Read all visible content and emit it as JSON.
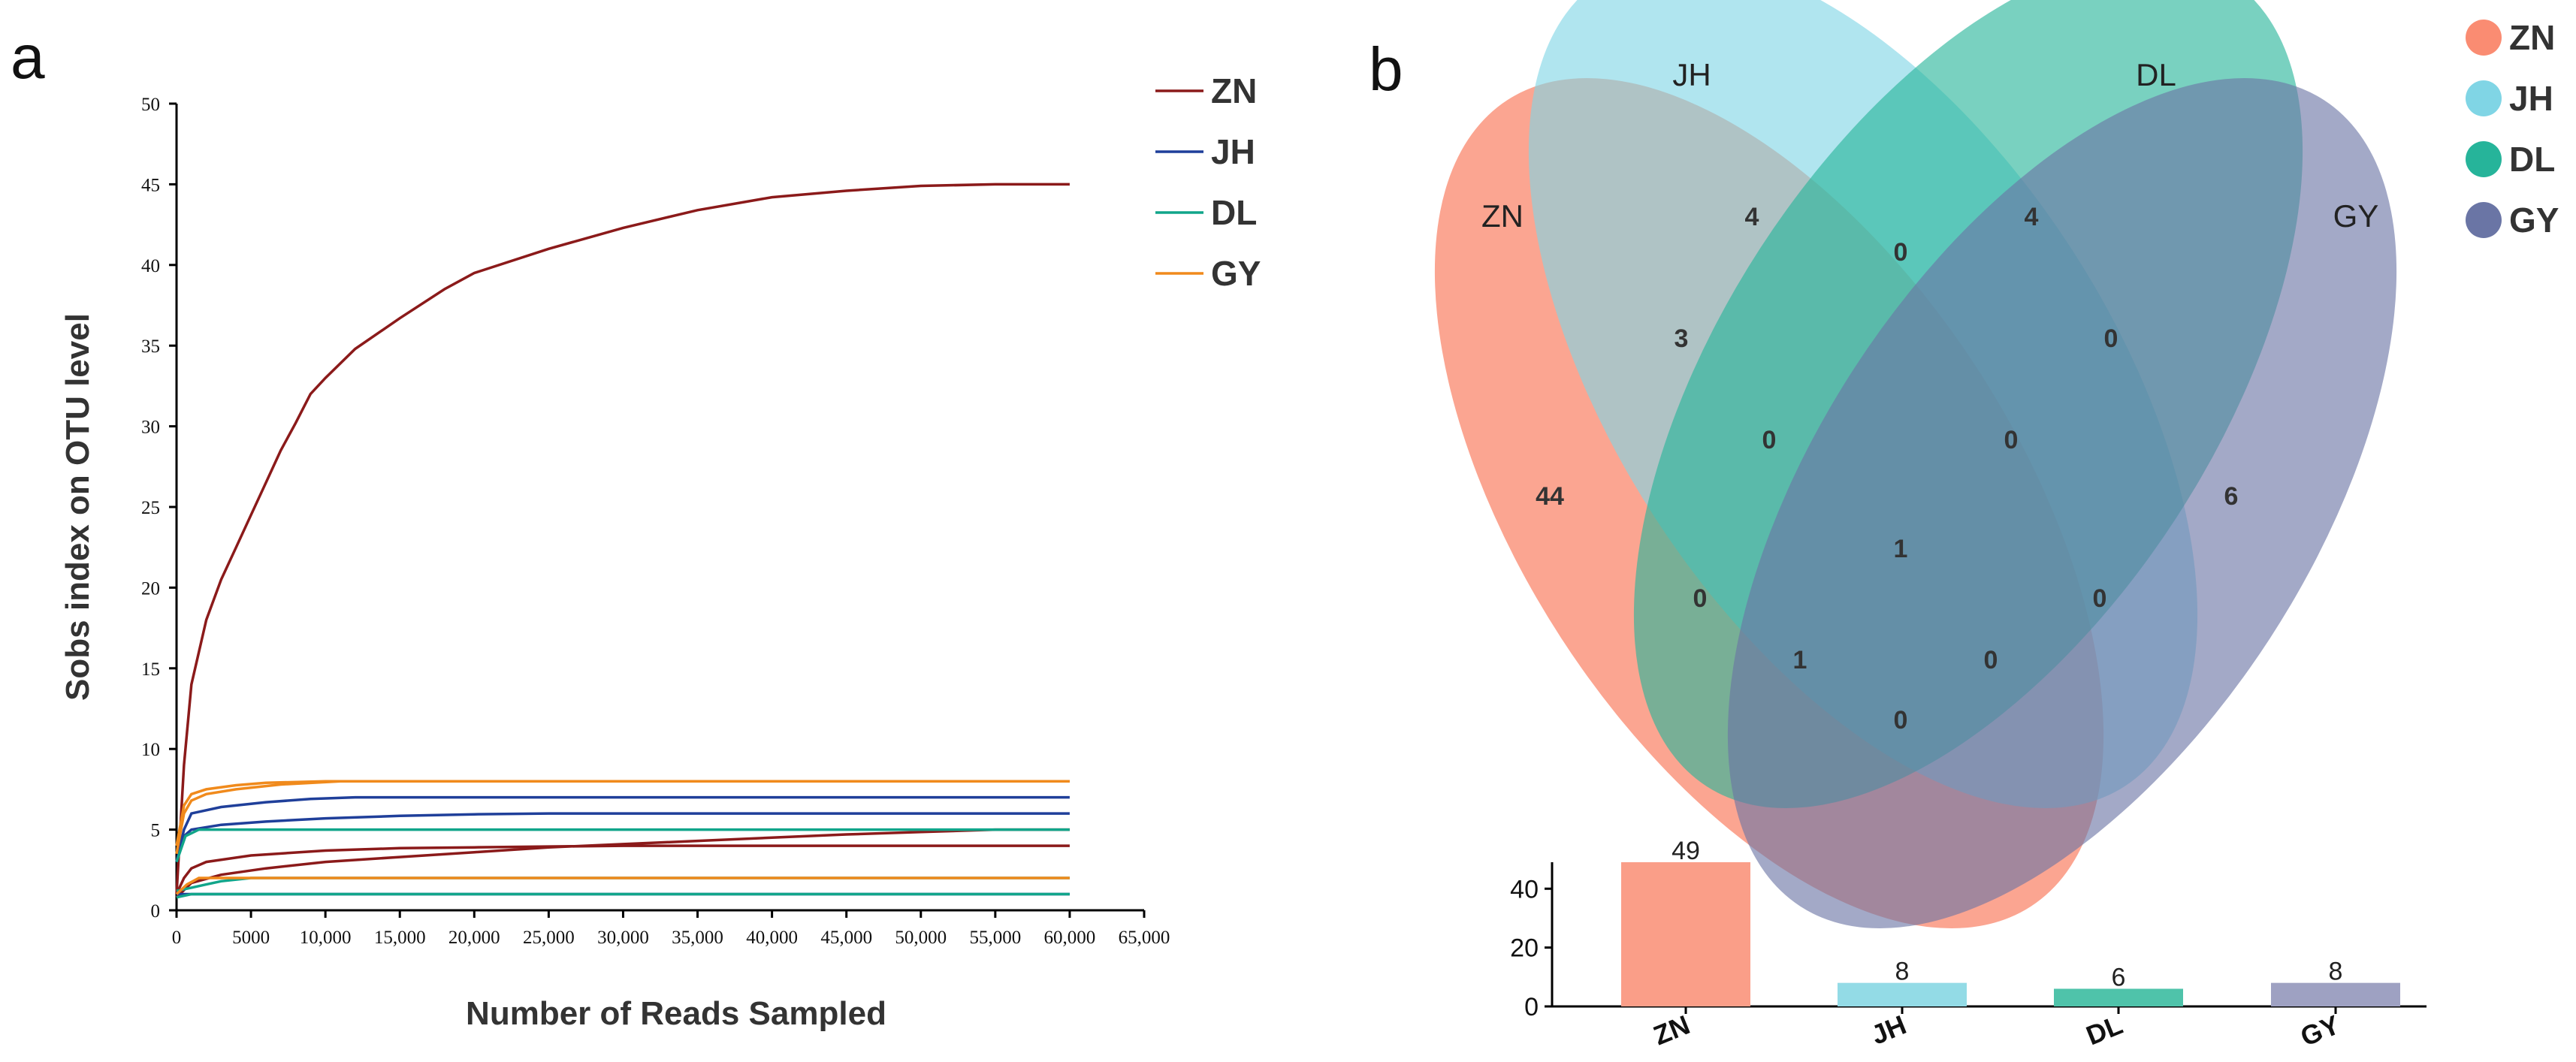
{
  "chart_data": [
    {
      "type": "line",
      "panel_label": "a",
      "xlabel": "Number of Reads Sampled",
      "ylabel": "Sobs index on OTU level",
      "xlim": [
        0,
        65000
      ],
      "ylim": [
        0,
        50
      ],
      "x_ticks": [
        "0",
        "5000",
        "10,000",
        "15,000",
        "20,000",
        "25,000",
        "30,000",
        "35,000",
        "40,000",
        "45,000",
        "50,000",
        "55,000",
        "60,000",
        "65,000"
      ],
      "y_ticks": [
        "0",
        "5",
        "10",
        "15",
        "20",
        "25",
        "30",
        "35",
        "40",
        "45",
        "50"
      ],
      "legend": [
        {
          "name": "ZN",
          "color": "#8b1a1a"
        },
        {
          "name": "JH",
          "color": "#1f3f9a"
        },
        {
          "name": "DL",
          "color": "#11a58a"
        },
        {
          "name": "GY",
          "color": "#f08a1c"
        }
      ],
      "series": [
        {
          "group": "ZN",
          "color": "#8b1a1a",
          "points": [
            [
              0,
              1
            ],
            [
              500,
              9
            ],
            [
              1000,
              14
            ],
            [
              2000,
              18
            ],
            [
              3000,
              20.5
            ],
            [
              4000,
              22.5
            ],
            [
              5000,
              24.5
            ],
            [
              6000,
              26.5
            ],
            [
              7000,
              28.5
            ],
            [
              8000,
              30.2
            ],
            [
              9000,
              32
            ],
            [
              10000,
              33
            ],
            [
              12000,
              34.8
            ],
            [
              15000,
              36.7
            ],
            [
              18000,
              38.5
            ],
            [
              20000,
              39.5
            ],
            [
              25000,
              41
            ],
            [
              30000,
              42.3
            ],
            [
              35000,
              43.4
            ],
            [
              40000,
              44.2
            ],
            [
              45000,
              44.6
            ],
            [
              50000,
              44.9
            ],
            [
              55000,
              45
            ],
            [
              60000,
              45
            ]
          ]
        },
        {
          "group": "ZN",
          "color": "#8b1a1a",
          "points": [
            [
              0,
              1
            ],
            [
              500,
              2
            ],
            [
              1000,
              2.6
            ],
            [
              2000,
              3
            ],
            [
              5000,
              3.4
            ],
            [
              10000,
              3.7
            ],
            [
              15000,
              3.85
            ],
            [
              20000,
              3.9
            ],
            [
              30000,
              4
            ],
            [
              40000,
              4
            ],
            [
              60000,
              4
            ]
          ]
        },
        {
          "group": "ZN",
          "color": "#8b1a1a",
          "points": [
            [
              0,
              0.8
            ],
            [
              1000,
              1.7
            ],
            [
              3000,
              2.2
            ],
            [
              6000,
              2.6
            ],
            [
              10000,
              3
            ],
            [
              15000,
              3.3
            ],
            [
              20000,
              3.6
            ],
            [
              25000,
              3.9
            ],
            [
              30000,
              4.1
            ],
            [
              35000,
              4.3
            ],
            [
              40000,
              4.5
            ],
            [
              45000,
              4.7
            ],
            [
              50000,
              4.85
            ],
            [
              55000,
              5
            ],
            [
              60000,
              5
            ]
          ]
        },
        {
          "group": "JH",
          "color": "#1f3f9a",
          "points": [
            [
              0,
              3
            ],
            [
              500,
              5
            ],
            [
              1000,
              6
            ],
            [
              3000,
              6.4
            ],
            [
              6000,
              6.7
            ],
            [
              9000,
              6.9
            ],
            [
              12000,
              7
            ],
            [
              60000,
              7
            ]
          ]
        },
        {
          "group": "JH",
          "color": "#1f3f9a",
          "points": [
            [
              0,
              3
            ],
            [
              500,
              4.6
            ],
            [
              1000,
              5
            ],
            [
              3000,
              5.3
            ],
            [
              6000,
              5.5
            ],
            [
              10000,
              5.7
            ],
            [
              15000,
              5.85
            ],
            [
              20000,
              5.95
            ],
            [
              25000,
              6
            ],
            [
              60000,
              6
            ]
          ]
        },
        {
          "group": "JH",
          "color": "#1f3f9a",
          "points": [
            [
              0,
              1
            ],
            [
              700,
              1
            ],
            [
              60000,
              1
            ]
          ]
        },
        {
          "group": "DL",
          "color": "#11a58a",
          "points": [
            [
              0,
              3
            ],
            [
              600,
              4.6
            ],
            [
              1500,
              5
            ],
            [
              60000,
              5
            ]
          ]
        },
        {
          "group": "DL",
          "color": "#11a58a",
          "points": [
            [
              0,
              1.2
            ],
            [
              1000,
              1.4
            ],
            [
              2000,
              1.6
            ],
            [
              3000,
              1.8
            ],
            [
              5000,
              2
            ],
            [
              60000,
              2
            ]
          ]
        },
        {
          "group": "DL",
          "color": "#11a58a",
          "points": [
            [
              0,
              0.8
            ],
            [
              1000,
              1
            ],
            [
              60000,
              1
            ]
          ]
        },
        {
          "group": "GY",
          "color": "#f08a1c",
          "points": [
            [
              0,
              4
            ],
            [
              500,
              6.5
            ],
            [
              1000,
              7.2
            ],
            [
              2000,
              7.5
            ],
            [
              4000,
              7.75
            ],
            [
              6000,
              7.9
            ],
            [
              10000,
              8
            ],
            [
              60000,
              8
            ]
          ]
        },
        {
          "group": "GY",
          "color": "#f08a1c",
          "points": [
            [
              0,
              3.5
            ],
            [
              500,
              6
            ],
            [
              1000,
              6.8
            ],
            [
              2000,
              7.2
            ],
            [
              4000,
              7.5
            ],
            [
              7000,
              7.8
            ],
            [
              11000,
              8
            ],
            [
              60000,
              8
            ]
          ]
        },
        {
          "group": "GY",
          "color": "#f08a1c",
          "points": [
            [
              0,
              1
            ],
            [
              700,
              1.6
            ],
            [
              1500,
              2
            ],
            [
              60000,
              2
            ]
          ]
        }
      ]
    },
    {
      "type": "venn",
      "panel_label": "b",
      "sets": [
        {
          "name": "ZN",
          "color": "#fa8c72"
        },
        {
          "name": "JH",
          "color": "#80d5e5"
        },
        {
          "name": "DL",
          "color": "#26b49a"
        },
        {
          "name": "GY",
          "color": "#6a75a5"
        }
      ],
      "regions": [
        {
          "sets": [
            "ZN"
          ],
          "value": "44"
        },
        {
          "sets": [
            "JH"
          ],
          "value": "4"
        },
        {
          "sets": [
            "DL"
          ],
          "value": "4"
        },
        {
          "sets": [
            "GY"
          ],
          "value": "6"
        },
        {
          "sets": [
            "ZN",
            "JH"
          ],
          "value": "3"
        },
        {
          "sets": [
            "JH",
            "DL"
          ],
          "value": "0"
        },
        {
          "sets": [
            "DL",
            "GY"
          ],
          "value": "0"
        },
        {
          "sets": [
            "ZN",
            "DL"
          ],
          "value": "0"
        },
        {
          "sets": [
            "JH",
            "GY"
          ],
          "value": "0"
        },
        {
          "sets": [
            "ZN",
            "GY"
          ],
          "value": "0"
        },
        {
          "sets": [
            "ZN",
            "JH",
            "DL"
          ],
          "value": "0"
        },
        {
          "sets": [
            "JH",
            "DL",
            "GY"
          ],
          "value": "0"
        },
        {
          "sets": [
            "ZN",
            "DL",
            "GY"
          ],
          "value": "1"
        },
        {
          "sets": [
            "ZN",
            "JH",
            "GY"
          ],
          "value": "0"
        },
        {
          "sets": [
            "ZN",
            "JH",
            "DL",
            "GY"
          ],
          "value": "1"
        }
      ]
    },
    {
      "type": "bar",
      "categories": [
        "ZN",
        "JH",
        "DL",
        "GY"
      ],
      "values": [
        49,
        8,
        6,
        8
      ],
      "colors": [
        "#fa9e88",
        "#93dbe6",
        "#4fc3aa",
        "#9ea1c2"
      ],
      "ylim": [
        0,
        49
      ],
      "y_ticks": [
        "0",
        "20",
        "40"
      ]
    }
  ]
}
